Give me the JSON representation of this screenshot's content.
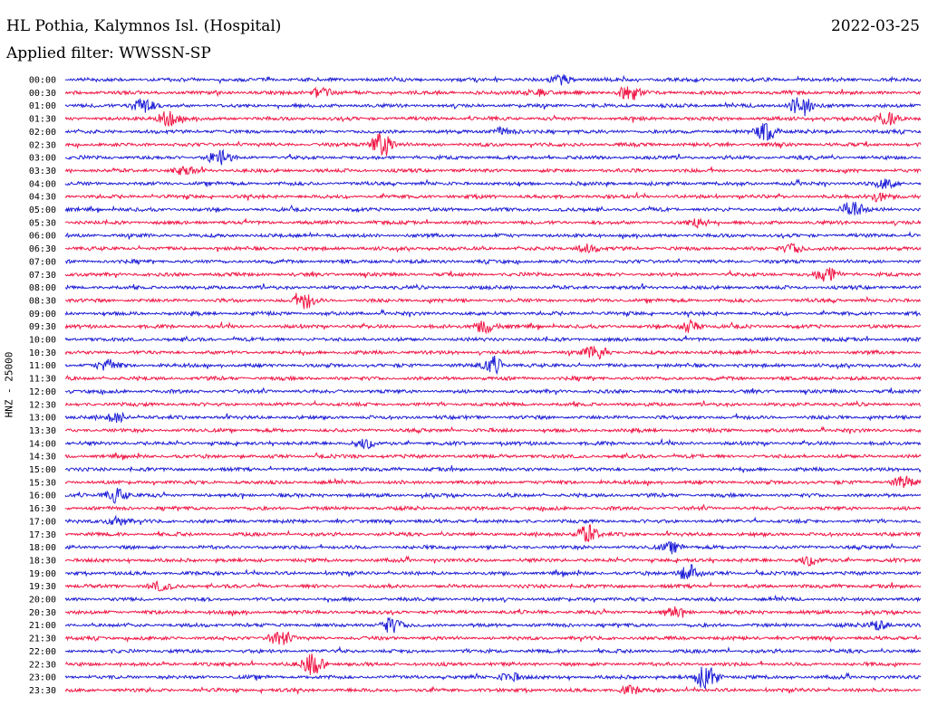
{
  "header": {
    "station": "HL Pothia, Kalymnos Isl. (Hospital)",
    "date": "2022-03-25",
    "filter": "Applied filter: WWSSN-SP"
  },
  "chart_data": {
    "type": "line",
    "title": "HL Pothia, Kalymnos Isl. (Hospital)",
    "ylabel": "HNZ - 25000",
    "colors": [
      "#1f1fd6",
      "#f01846"
    ],
    "series": [
      {
        "name": "00:00",
        "events": [
          {
            "t": 0.58,
            "a": 5
          }
        ]
      },
      {
        "name": "00:30",
        "events": [
          {
            "t": 0.3,
            "a": 6
          },
          {
            "t": 0.55,
            "a": 4
          },
          {
            "t": 0.66,
            "a": 8
          }
        ]
      },
      {
        "name": "01:00",
        "events": [
          {
            "t": 0.09,
            "a": 9
          },
          {
            "t": 0.86,
            "a": 12
          }
        ]
      },
      {
        "name": "01:30",
        "events": [
          {
            "t": 0.12,
            "a": 8
          },
          {
            "t": 0.96,
            "a": 8
          }
        ]
      },
      {
        "name": "02:00",
        "events": [
          {
            "t": 0.51,
            "a": 4
          },
          {
            "t": 0.82,
            "a": 10
          }
        ]
      },
      {
        "name": "02:30",
        "events": [
          {
            "t": 0.37,
            "a": 14
          }
        ]
      },
      {
        "name": "03:00",
        "events": [
          {
            "t": 0.18,
            "a": 8
          }
        ]
      },
      {
        "name": "03:30",
        "events": [
          {
            "t": 0.14,
            "a": 4
          }
        ]
      },
      {
        "name": "04:00",
        "events": [
          {
            "t": 0.96,
            "a": 5
          }
        ]
      },
      {
        "name": "04:30",
        "events": [
          {
            "t": 0.95,
            "a": 5
          }
        ]
      },
      {
        "name": "05:00",
        "events": [
          {
            "t": 0.92,
            "a": 9
          }
        ]
      },
      {
        "name": "05:30",
        "events": [
          {
            "t": 0.74,
            "a": 5
          }
        ]
      },
      {
        "name": "06:00",
        "events": []
      },
      {
        "name": "06:30",
        "events": [
          {
            "t": 0.85,
            "a": 5
          },
          {
            "t": 0.61,
            "a": 4
          }
        ]
      },
      {
        "name": "07:00",
        "events": []
      },
      {
        "name": "07:30",
        "events": [
          {
            "t": 0.89,
            "a": 9
          }
        ]
      },
      {
        "name": "08:00",
        "events": []
      },
      {
        "name": "08:30",
        "events": [
          {
            "t": 0.28,
            "a": 8
          }
        ]
      },
      {
        "name": "09:00",
        "events": []
      },
      {
        "name": "09:30",
        "events": [
          {
            "t": 0.49,
            "a": 7
          },
          {
            "t": 0.73,
            "a": 6
          }
        ]
      },
      {
        "name": "10:00",
        "events": []
      },
      {
        "name": "10:30",
        "events": [
          {
            "t": 0.62,
            "a": 8
          }
        ]
      },
      {
        "name": "11:00",
        "events": [
          {
            "t": 0.05,
            "a": 6
          },
          {
            "t": 0.5,
            "a": 9
          }
        ]
      },
      {
        "name": "11:30",
        "events": []
      },
      {
        "name": "12:00",
        "events": []
      },
      {
        "name": "12:30",
        "events": []
      },
      {
        "name": "13:00",
        "events": [
          {
            "t": 0.06,
            "a": 5
          }
        ]
      },
      {
        "name": "13:30",
        "events": []
      },
      {
        "name": "14:00",
        "events": [
          {
            "t": 0.35,
            "a": 5
          }
        ]
      },
      {
        "name": "14:30",
        "events": []
      },
      {
        "name": "15:00",
        "events": []
      },
      {
        "name": "15:30",
        "events": [
          {
            "t": 0.98,
            "a": 6
          }
        ]
      },
      {
        "name": "16:00",
        "events": [
          {
            "t": 0.06,
            "a": 8
          }
        ]
      },
      {
        "name": "16:30",
        "events": []
      },
      {
        "name": "17:00",
        "events": [
          {
            "t": 0.06,
            "a": 5
          }
        ]
      },
      {
        "name": "17:30",
        "events": [
          {
            "t": 0.61,
            "a": 10
          }
        ]
      },
      {
        "name": "18:00",
        "events": [
          {
            "t": 0.71,
            "a": 5
          }
        ]
      },
      {
        "name": "18:30",
        "events": [
          {
            "t": 0.87,
            "a": 5
          }
        ]
      },
      {
        "name": "19:00",
        "events": [
          {
            "t": 0.73,
            "a": 9
          }
        ]
      },
      {
        "name": "19:30",
        "events": [
          {
            "t": 0.11,
            "a": 4
          }
        ]
      },
      {
        "name": "20:00",
        "events": []
      },
      {
        "name": "20:30",
        "events": [
          {
            "t": 0.71,
            "a": 5
          }
        ]
      },
      {
        "name": "21:00",
        "events": [
          {
            "t": 0.38,
            "a": 8
          },
          {
            "t": 0.95,
            "a": 5
          }
        ]
      },
      {
        "name": "21:30",
        "events": [
          {
            "t": 0.25,
            "a": 8
          }
        ]
      },
      {
        "name": "22:00",
        "events": []
      },
      {
        "name": "22:30",
        "events": [
          {
            "t": 0.29,
            "a": 12
          }
        ]
      },
      {
        "name": "23:00",
        "events": [
          {
            "t": 0.52,
            "a": 5
          },
          {
            "t": 0.75,
            "a": 14
          }
        ]
      },
      {
        "name": "23:30",
        "events": [
          {
            "t": 0.66,
            "a": 4
          }
        ]
      }
    ]
  }
}
